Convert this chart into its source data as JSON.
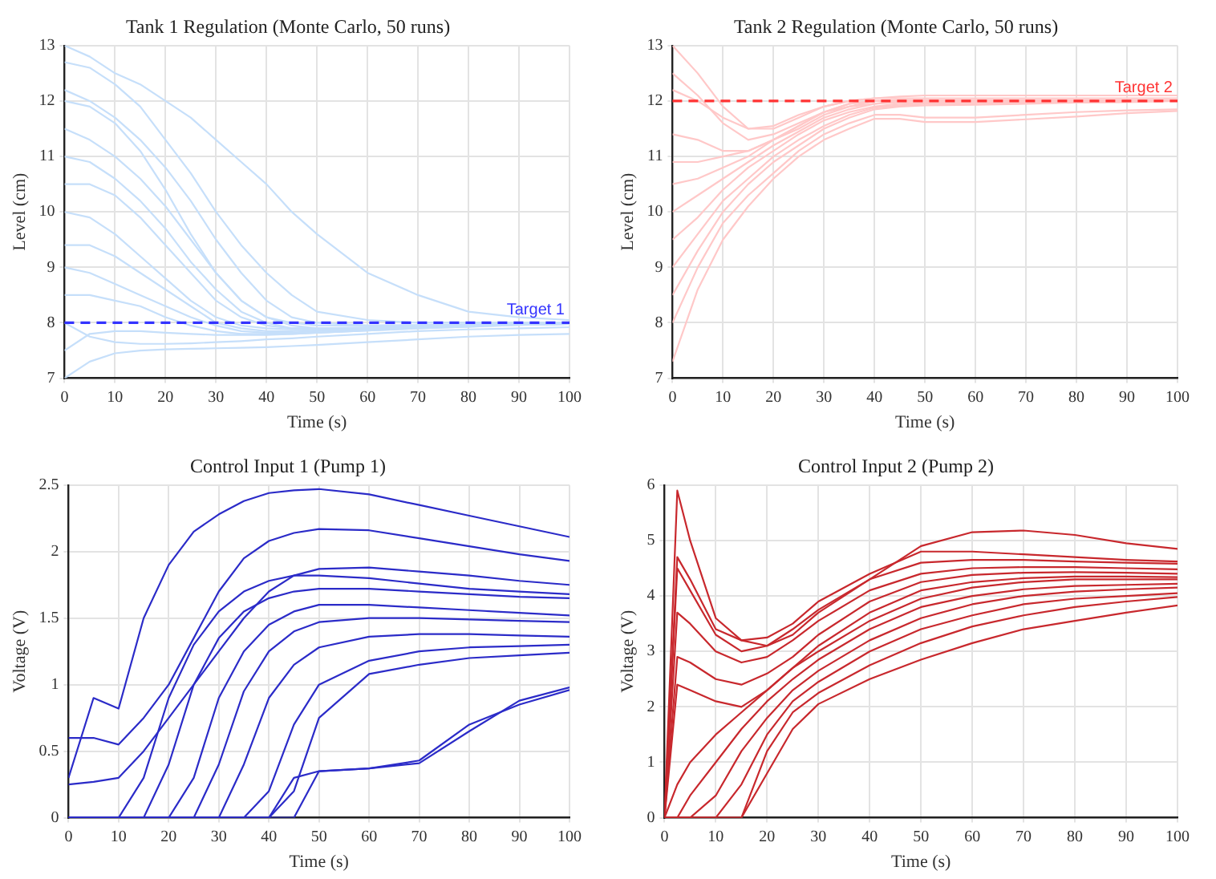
{
  "chart_data": [
    {
      "type": "line",
      "title": "Tank 1 Regulation (Monte Carlo, 50 runs)",
      "xlabel": "Time (s)",
      "ylabel": "Level (cm)",
      "x": [
        0,
        5,
        10,
        15,
        20,
        25,
        30,
        35,
        40,
        45,
        50,
        60,
        70,
        80,
        90,
        100
      ],
      "xlim": [
        0,
        100
      ],
      "xticks": [
        0,
        10,
        20,
        30,
        40,
        50,
        60,
        70,
        80,
        90,
        100
      ],
      "ylim": [
        7,
        13
      ],
      "yticks": [
        7,
        8,
        9,
        10,
        11,
        12,
        13
      ],
      "grid": true,
      "ref_lines": [
        {
          "axis": "y",
          "value": 8,
          "label": "Target 1",
          "color": "#3333ff",
          "line_style": "dashed"
        }
      ],
      "series": [
        {
          "color": "#c6dffa",
          "values": [
            13,
            12.8,
            12.5,
            12.3,
            12.0,
            11.7,
            11.3,
            10.9,
            10.5,
            10.0,
            9.6,
            8.9,
            8.5,
            8.2,
            8.1,
            8.05
          ]
        },
        {
          "color": "#c6dffa",
          "values": [
            12.7,
            12.6,
            12.3,
            11.9,
            11.3,
            10.7,
            10.0,
            9.4,
            8.9,
            8.5,
            8.2,
            8.05,
            8.0,
            8.0,
            8.0,
            8.0
          ]
        },
        {
          "color": "#c6dffa",
          "values": [
            12.2,
            12.0,
            11.7,
            11.3,
            10.8,
            10.2,
            9.5,
            8.9,
            8.4,
            8.1,
            8.0,
            7.95,
            7.95,
            7.97,
            7.98,
            8.0
          ]
        },
        {
          "color": "#c6dffa",
          "values": [
            12.0,
            11.9,
            11.6,
            11.1,
            10.4,
            9.6,
            8.9,
            8.4,
            8.1,
            8.0,
            7.95,
            7.95,
            7.96,
            7.97,
            7.98,
            8.0
          ]
        },
        {
          "color": "#c6dffa",
          "values": [
            11.5,
            11.3,
            11.0,
            10.6,
            10.1,
            9.5,
            8.9,
            8.4,
            8.1,
            7.95,
            7.9,
            7.9,
            7.92,
            7.95,
            7.97,
            7.98
          ]
        },
        {
          "color": "#c6dffa",
          "values": [
            11.0,
            10.9,
            10.6,
            10.2,
            9.7,
            9.1,
            8.6,
            8.2,
            8.0,
            7.9,
            7.9,
            7.9,
            7.93,
            7.95,
            7.97,
            7.98
          ]
        },
        {
          "color": "#c6dffa",
          "values": [
            10.5,
            10.5,
            10.3,
            9.9,
            9.4,
            8.9,
            8.4,
            8.1,
            7.95,
            7.9,
            7.9,
            7.92,
            7.94,
            7.96,
            7.97,
            7.98
          ]
        },
        {
          "color": "#c6dffa",
          "values": [
            10.0,
            9.9,
            9.6,
            9.2,
            8.8,
            8.4,
            8.1,
            7.95,
            7.9,
            7.88,
            7.88,
            7.9,
            7.92,
            7.95,
            7.97,
            7.98
          ]
        },
        {
          "color": "#c6dffa",
          "values": [
            9.4,
            9.4,
            9.2,
            8.9,
            8.6,
            8.3,
            8.0,
            7.9,
            7.85,
            7.85,
            7.87,
            7.9,
            7.92,
            7.95,
            7.97,
            7.98
          ]
        },
        {
          "color": "#c6dffa",
          "values": [
            9.0,
            8.9,
            8.7,
            8.5,
            8.3,
            8.1,
            7.95,
            7.85,
            7.82,
            7.82,
            7.85,
            7.88,
            7.92,
            7.95,
            7.97,
            7.98
          ]
        },
        {
          "color": "#c6dffa",
          "values": [
            8.5,
            8.5,
            8.4,
            8.3,
            8.1,
            7.95,
            7.85,
            7.8,
            7.8,
            7.8,
            7.82,
            7.86,
            7.9,
            7.93,
            7.96,
            7.98
          ]
        },
        {
          "color": "#c6dffa",
          "values": [
            8.0,
            7.75,
            7.65,
            7.62,
            7.62,
            7.63,
            7.65,
            7.67,
            7.7,
            7.72,
            7.75,
            7.8,
            7.85,
            7.88,
            7.9,
            7.92
          ]
        },
        {
          "color": "#c6dffa",
          "values": [
            7.5,
            7.8,
            7.85,
            7.85,
            7.82,
            7.8,
            7.78,
            7.78,
            7.78,
            7.8,
            7.82,
            7.86,
            7.9,
            7.93,
            7.96,
            7.98
          ]
        },
        {
          "color": "#c6dffa",
          "values": [
            7.0,
            7.3,
            7.45,
            7.5,
            7.52,
            7.53,
            7.54,
            7.55,
            7.56,
            7.58,
            7.6,
            7.65,
            7.7,
            7.75,
            7.78,
            7.8
          ]
        }
      ]
    },
    {
      "type": "line",
      "title": "Tank 2 Regulation (Monte Carlo, 50 runs)",
      "xlabel": "Time (s)",
      "ylabel": "Level (cm)",
      "x": [
        0,
        5,
        10,
        15,
        20,
        25,
        30,
        35,
        40,
        45,
        50,
        60,
        70,
        80,
        90,
        100
      ],
      "xlim": [
        0,
        100
      ],
      "xticks": [
        0,
        10,
        20,
        30,
        40,
        50,
        60,
        70,
        80,
        90,
        100
      ],
      "ylim": [
        7,
        13
      ],
      "yticks": [
        7,
        8,
        9,
        10,
        11,
        12,
        13
      ],
      "grid": true,
      "ref_lines": [
        {
          "axis": "y",
          "value": 12,
          "label": "Target 2",
          "color": "#ff3333",
          "line_style": "dashed"
        }
      ],
      "series": [
        {
          "color": "#ffc8c8",
          "values": [
            13.0,
            12.5,
            11.9,
            11.5,
            11.5,
            11.7,
            11.9,
            12.0,
            12.05,
            12.05,
            12.05,
            12.05,
            12.05,
            12.05,
            12.05,
            12.05
          ]
        },
        {
          "color": "#ffc8c8",
          "values": [
            12.5,
            12.1,
            11.6,
            11.3,
            11.4,
            11.6,
            11.8,
            11.95,
            12.0,
            12.0,
            12.0,
            12.0,
            12.0,
            12.0,
            12.0,
            12.0
          ]
        },
        {
          "color": "#ffc8c8",
          "values": [
            12.2,
            12.0,
            11.7,
            11.5,
            11.55,
            11.75,
            11.9,
            12.0,
            12.05,
            12.08,
            12.1,
            12.1,
            12.1,
            12.1,
            12.1,
            12.1
          ]
        },
        {
          "color": "#ffc8c8",
          "values": [
            11.4,
            11.3,
            11.1,
            11.1,
            11.3,
            11.55,
            11.8,
            11.95,
            12.0,
            12.02,
            12.02,
            12.02,
            12.02,
            12.02,
            12.02,
            12.02
          ]
        },
        {
          "color": "#ffc8c8",
          "values": [
            10.9,
            10.9,
            11.0,
            11.1,
            11.3,
            11.55,
            11.8,
            11.9,
            12.0,
            12.0,
            12.0,
            12.0,
            12.0,
            12.0,
            12.0,
            12.0
          ]
        },
        {
          "color": "#ffc8c8",
          "values": [
            10.5,
            10.6,
            10.8,
            11.0,
            11.3,
            11.5,
            11.75,
            11.9,
            11.95,
            12.0,
            12.0,
            12.0,
            12.0,
            12.0,
            12.0,
            12.0
          ]
        },
        {
          "color": "#ffc8c8",
          "values": [
            10.0,
            10.3,
            10.6,
            10.9,
            11.2,
            11.45,
            11.7,
            11.85,
            11.95,
            11.98,
            12.0,
            12.0,
            12.0,
            12.0,
            12.0,
            12.0
          ]
        },
        {
          "color": "#ffc8c8",
          "values": [
            9.5,
            9.9,
            10.4,
            10.8,
            11.1,
            11.4,
            11.65,
            11.8,
            11.9,
            11.95,
            11.97,
            11.98,
            11.99,
            12.0,
            12.0,
            12.0
          ]
        },
        {
          "color": "#ffc8c8",
          "values": [
            9.0,
            9.6,
            10.2,
            10.6,
            11.0,
            11.3,
            11.55,
            11.75,
            11.88,
            11.92,
            11.95,
            11.95,
            11.97,
            11.98,
            12.0,
            12.0
          ]
        },
        {
          "color": "#ffc8c8",
          "values": [
            8.5,
            9.3,
            10.0,
            10.5,
            10.9,
            11.2,
            11.5,
            11.7,
            11.85,
            11.9,
            11.92,
            11.93,
            11.95,
            11.97,
            11.98,
            12.0
          ]
        },
        {
          "color": "#ffc8c8",
          "values": [
            8.0,
            9.0,
            9.8,
            10.3,
            10.7,
            11.1,
            11.4,
            11.6,
            11.75,
            11.75,
            11.7,
            11.7,
            11.75,
            11.8,
            11.83,
            11.85
          ]
        },
        {
          "color": "#ffc8c8",
          "values": [
            7.3,
            8.6,
            9.5,
            10.1,
            10.6,
            11.0,
            11.3,
            11.5,
            11.68,
            11.68,
            11.62,
            11.62,
            11.67,
            11.72,
            11.78,
            11.82
          ]
        }
      ]
    },
    {
      "type": "line",
      "title": "Control Input 1 (Pump 1)",
      "xlabel": "Time (s)",
      "ylabel": "Voltage (V)",
      "x": [
        0,
        5,
        10,
        15,
        20,
        25,
        30,
        35,
        40,
        45,
        50,
        60,
        70,
        80,
        90,
        100
      ],
      "xlim": [
        0,
        100
      ],
      "xticks": [
        0,
        10,
        20,
        30,
        40,
        50,
        60,
        70,
        80,
        90,
        100
      ],
      "ylim": [
        0,
        2.5
      ],
      "yticks": [
        0,
        0.5,
        1,
        1.5,
        2,
        2.5
      ],
      "grid": true,
      "series": [
        {
          "color": "#2b2bc8",
          "values": [
            0.3,
            0.9,
            0.82,
            1.5,
            1.9,
            2.15,
            2.28,
            2.38,
            2.44,
            2.46,
            2.47,
            2.43,
            2.35,
            2.27,
            2.19,
            2.11
          ]
        },
        {
          "color": "#2b2bc8",
          "values": [
            0.6,
            0.6,
            0.55,
            0.75,
            1.0,
            1.35,
            1.7,
            1.95,
            2.08,
            2.14,
            2.17,
            2.16,
            2.1,
            2.04,
            1.98,
            1.93
          ]
        },
        {
          "color": "#2b2bc8",
          "values": [
            0.25,
            0.27,
            0.3,
            0.5,
            0.75,
            1.0,
            1.25,
            1.5,
            1.7,
            1.82,
            1.87,
            1.88,
            1.85,
            1.82,
            1.78,
            1.75
          ]
        },
        {
          "color": "#2b2bc8",
          "values": [
            0,
            0,
            0,
            0.3,
            0.9,
            1.3,
            1.55,
            1.7,
            1.78,
            1.82,
            1.82,
            1.8,
            1.76,
            1.72,
            1.7,
            1.68
          ]
        },
        {
          "color": "#2b2bc8",
          "values": [
            0,
            0,
            0,
            0,
            0.4,
            1.0,
            1.35,
            1.55,
            1.65,
            1.7,
            1.72,
            1.72,
            1.7,
            1.68,
            1.66,
            1.65
          ]
        },
        {
          "color": "#2b2bc8",
          "values": [
            0,
            0,
            0,
            0,
            0,
            0.3,
            0.9,
            1.25,
            1.45,
            1.55,
            1.6,
            1.6,
            1.58,
            1.56,
            1.54,
            1.52
          ]
        },
        {
          "color": "#2b2bc8",
          "values": [
            0,
            0,
            0,
            0,
            0,
            0,
            0.4,
            0.95,
            1.25,
            1.4,
            1.47,
            1.5,
            1.5,
            1.49,
            1.48,
            1.47
          ]
        },
        {
          "color": "#2b2bc8",
          "values": [
            0,
            0,
            0,
            0,
            0,
            0,
            0,
            0.4,
            0.9,
            1.15,
            1.28,
            1.36,
            1.38,
            1.38,
            1.37,
            1.36
          ]
        },
        {
          "color": "#2b2bc8",
          "values": [
            0,
            0,
            0,
            0,
            0,
            0,
            0,
            0,
            0.2,
            0.7,
            1.0,
            1.18,
            1.25,
            1.28,
            1.29,
            1.3
          ]
        },
        {
          "color": "#2b2bc8",
          "values": [
            0,
            0,
            0,
            0,
            0,
            0,
            0,
            0,
            0,
            0.2,
            0.75,
            1.08,
            1.15,
            1.2,
            1.22,
            1.24
          ]
        },
        {
          "color": "#2b2bc8",
          "values": [
            0,
            0,
            0,
            0,
            0,
            0,
            0,
            0,
            0,
            0.3,
            0.35,
            0.37,
            0.43,
            0.7,
            0.85,
            0.96
          ]
        },
        {
          "color": "#2b2bc8",
          "values": [
            0,
            0,
            0,
            0,
            0,
            0,
            0,
            0,
            0,
            0,
            0.35,
            0.37,
            0.41,
            0.65,
            0.88,
            0.98
          ]
        }
      ]
    },
    {
      "type": "line",
      "title": "Control Input 2 (Pump 2)",
      "xlabel": "Time (s)",
      "ylabel": "Voltage (V)",
      "x": [
        0,
        2.5,
        5,
        10,
        15,
        20,
        25,
        30,
        40,
        50,
        60,
        70,
        80,
        90,
        100
      ],
      "xlim": [
        0,
        100
      ],
      "xticks": [
        0,
        10,
        20,
        30,
        40,
        50,
        60,
        70,
        80,
        90,
        100
      ],
      "ylim": [
        0,
        6
      ],
      "yticks": [
        0,
        1,
        2,
        3,
        4,
        5,
        6
      ],
      "grid": true,
      "series": [
        {
          "color": "#c8282d",
          "values": [
            0,
            5.9,
            5.0,
            3.6,
            3.2,
            3.1,
            3.3,
            3.7,
            4.3,
            4.9,
            5.15,
            5.18,
            5.1,
            4.95,
            4.85
          ]
        },
        {
          "color": "#c8282d",
          "values": [
            0,
            4.7,
            4.3,
            3.4,
            3.2,
            3.25,
            3.5,
            3.9,
            4.4,
            4.8,
            4.8,
            4.75,
            4.7,
            4.65,
            4.62
          ]
        },
        {
          "color": "#c8282d",
          "values": [
            0,
            4.5,
            4.1,
            3.3,
            3.0,
            3.1,
            3.4,
            3.75,
            4.3,
            4.6,
            4.65,
            4.65,
            4.62,
            4.6,
            4.58
          ]
        },
        {
          "color": "#c8282d",
          "values": [
            0,
            3.7,
            3.5,
            3.0,
            2.8,
            2.9,
            3.2,
            3.55,
            4.1,
            4.4,
            4.5,
            4.52,
            4.52,
            4.5,
            4.48
          ]
        },
        {
          "color": "#c8282d",
          "values": [
            0,
            2.9,
            2.8,
            2.5,
            2.4,
            2.6,
            2.9,
            3.3,
            3.9,
            4.25,
            4.38,
            4.42,
            4.43,
            4.42,
            4.4
          ]
        },
        {
          "color": "#c8282d",
          "values": [
            0,
            2.4,
            2.3,
            2.1,
            2.0,
            2.3,
            2.7,
            3.1,
            3.7,
            4.1,
            4.25,
            4.32,
            4.35,
            4.35,
            4.34
          ]
        },
        {
          "color": "#c8282d",
          "values": [
            0,
            0.6,
            1.0,
            1.5,
            1.9,
            2.3,
            2.7,
            3.0,
            3.55,
            3.95,
            4.15,
            4.25,
            4.3,
            4.3,
            4.3
          ]
        },
        {
          "color": "#c8282d",
          "values": [
            0,
            0,
            0.4,
            1.0,
            1.6,
            2.1,
            2.5,
            2.85,
            3.4,
            3.8,
            4.0,
            4.12,
            4.18,
            4.2,
            4.22
          ]
        },
        {
          "color": "#c8282d",
          "values": [
            0,
            0,
            0,
            0.4,
            1.2,
            1.8,
            2.3,
            2.65,
            3.2,
            3.6,
            3.85,
            4.0,
            4.08,
            4.12,
            4.15
          ]
        },
        {
          "color": "#c8282d",
          "values": [
            0,
            0,
            0,
            0,
            0.6,
            1.5,
            2.1,
            2.45,
            3.0,
            3.4,
            3.65,
            3.85,
            3.95,
            4.0,
            4.05
          ]
        },
        {
          "color": "#c8282d",
          "values": [
            0,
            0,
            0,
            0,
            0,
            1.2,
            1.9,
            2.25,
            2.75,
            3.15,
            3.45,
            3.65,
            3.8,
            3.9,
            3.98
          ]
        },
        {
          "color": "#c8282d",
          "values": [
            0,
            0,
            0,
            0,
            0,
            0.8,
            1.6,
            2.05,
            2.5,
            2.85,
            3.15,
            3.4,
            3.55,
            3.7,
            3.83
          ]
        }
      ]
    }
  ]
}
